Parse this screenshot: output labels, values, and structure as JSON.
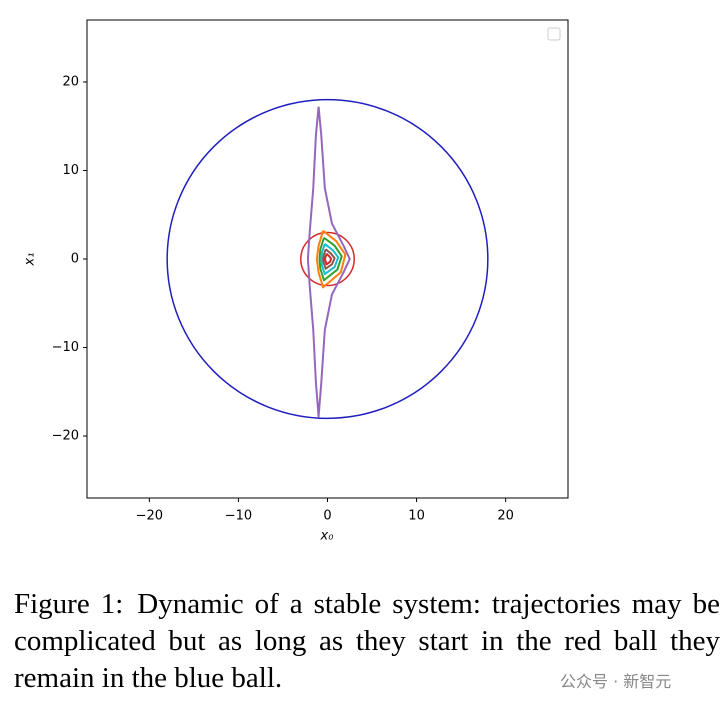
{
  "chart_data": {
    "type": "trajectory",
    "xlabel": "x₀",
    "ylabel": "x₁",
    "xlim": [
      -27,
      27
    ],
    "ylim": [
      -27,
      27
    ],
    "xticks": [
      {
        "value": -20,
        "label": "−20"
      },
      {
        "value": -10,
        "label": "−10"
      },
      0,
      10,
      20
    ],
    "yticks": [
      {
        "value": -20,
        "label": "−20"
      },
      {
        "value": -10,
        "label": "−10"
      },
      0,
      10,
      20
    ],
    "legend": "upper right",
    "circles": [
      {
        "color": "#1f1fbf",
        "center": [
          0,
          0
        ],
        "radius": 18
      },
      {
        "color": "#d62728",
        "center": [
          0,
          0
        ],
        "radius": 3
      }
    ],
    "series": [
      {
        "color": "#9467bd",
        "x": [
          -1.0,
          -0.7,
          -0.3,
          0.5,
          1.8,
          2.5,
          1.8,
          0.5,
          -0.3,
          -0.7,
          -1.0,
          -1.3,
          -1.6,
          -2.0,
          -2.2,
          -2.0,
          -1.6,
          -1.3,
          -1.0
        ],
        "y": [
          17.2,
          14,
          8,
          4,
          1.5,
          0,
          -1.5,
          -4,
          -8,
          -14,
          -17.8,
          -14,
          -8,
          -3,
          0,
          3,
          8,
          14,
          17.2
        ]
      },
      {
        "color": "#ff7f0e",
        "x": [
          -0.5,
          1.0,
          2.0,
          1.5,
          -0.5,
          -1.0,
          -1.2,
          -1.0,
          -0.5
        ],
        "y": [
          3.2,
          2.0,
          0.5,
          -1.5,
          -3.2,
          -1.5,
          0,
          1.5,
          3.2
        ]
      },
      {
        "color": "#2ca02c",
        "x": [
          -0.4,
          0.8,
          1.6,
          1.1,
          -0.4,
          -0.8,
          -0.9,
          -0.8,
          -0.4
        ],
        "y": [
          2.4,
          1.5,
          0.3,
          -1.2,
          -2.4,
          -1.1,
          0,
          1.1,
          2.4
        ]
      },
      {
        "color": "#17becf",
        "x": [
          -0.3,
          0.6,
          1.2,
          0.8,
          -0.3,
          -0.6,
          -0.7,
          -0.6,
          -0.3
        ],
        "y": [
          1.7,
          1.0,
          0.2,
          -0.9,
          -1.7,
          -0.8,
          0,
          0.8,
          1.7
        ]
      },
      {
        "color": "#8c564b",
        "x": [
          -0.2,
          0.4,
          0.8,
          0.5,
          -0.2,
          -0.4,
          -0.5,
          -0.4,
          -0.2
        ],
        "y": [
          1.1,
          0.6,
          0.1,
          -0.6,
          -1.1,
          -0.5,
          0,
          0.5,
          1.1
        ]
      },
      {
        "color": "#d62728",
        "x": [
          -0.1,
          0.2,
          0.4,
          0.3,
          -0.1,
          -0.2,
          -0.3,
          -0.2,
          -0.1
        ],
        "y": [
          0.6,
          0.3,
          0.05,
          -0.3,
          -0.6,
          -0.3,
          0,
          0.3,
          0.6
        ]
      }
    ]
  },
  "caption": {
    "label": "Figure 1:",
    "text": "Dynamic of a stable system: trajectories may be complicated but as long as they start in the red ball they remain in the blue ball."
  },
  "watermark": "公众号 · 新智元"
}
